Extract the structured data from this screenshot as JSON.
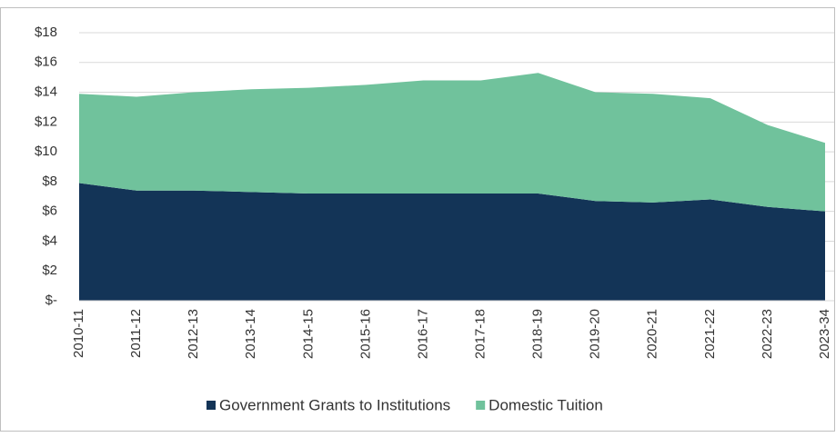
{
  "chart_data": {
    "type": "stacked_area",
    "categories": [
      "2010-11",
      "2011-12",
      "2012-13",
      "2013-14",
      "2014-15",
      "2015-16",
      "2016-17",
      "2017-18",
      "2018-19",
      "2019-20",
      "2020-21",
      "2021-22",
      "2022-23",
      "2023-34"
    ],
    "series": [
      {
        "name": "Government Grants to Institutions",
        "color": "#133457",
        "values": [
          7.9,
          7.4,
          7.4,
          7.3,
          7.2,
          7.2,
          7.2,
          7.2,
          7.2,
          6.7,
          6.6,
          6.8,
          6.3,
          6.0
        ]
      },
      {
        "name": "Domestic Tuition",
        "color": "#70c29c",
        "values": [
          6.0,
          6.3,
          6.6,
          6.9,
          7.1,
          7.3,
          7.6,
          7.6,
          8.1,
          7.3,
          7.3,
          6.8,
          5.5,
          4.6
        ]
      }
    ],
    "ylim": [
      0,
      18
    ],
    "yticks": [
      {
        "value": 0,
        "label": "$-"
      },
      {
        "value": 2,
        "label": "$2"
      },
      {
        "value": 4,
        "label": "$4"
      },
      {
        "value": 6,
        "label": "$6"
      },
      {
        "value": 8,
        "label": "$8"
      },
      {
        "value": 10,
        "label": "$10"
      },
      {
        "value": 12,
        "label": "$12"
      },
      {
        "value": 14,
        "label": "$14"
      },
      {
        "value": 16,
        "label": "$16"
      },
      {
        "value": 18,
        "label": "$18"
      }
    ],
    "grid": true,
    "legend": "bottom"
  }
}
